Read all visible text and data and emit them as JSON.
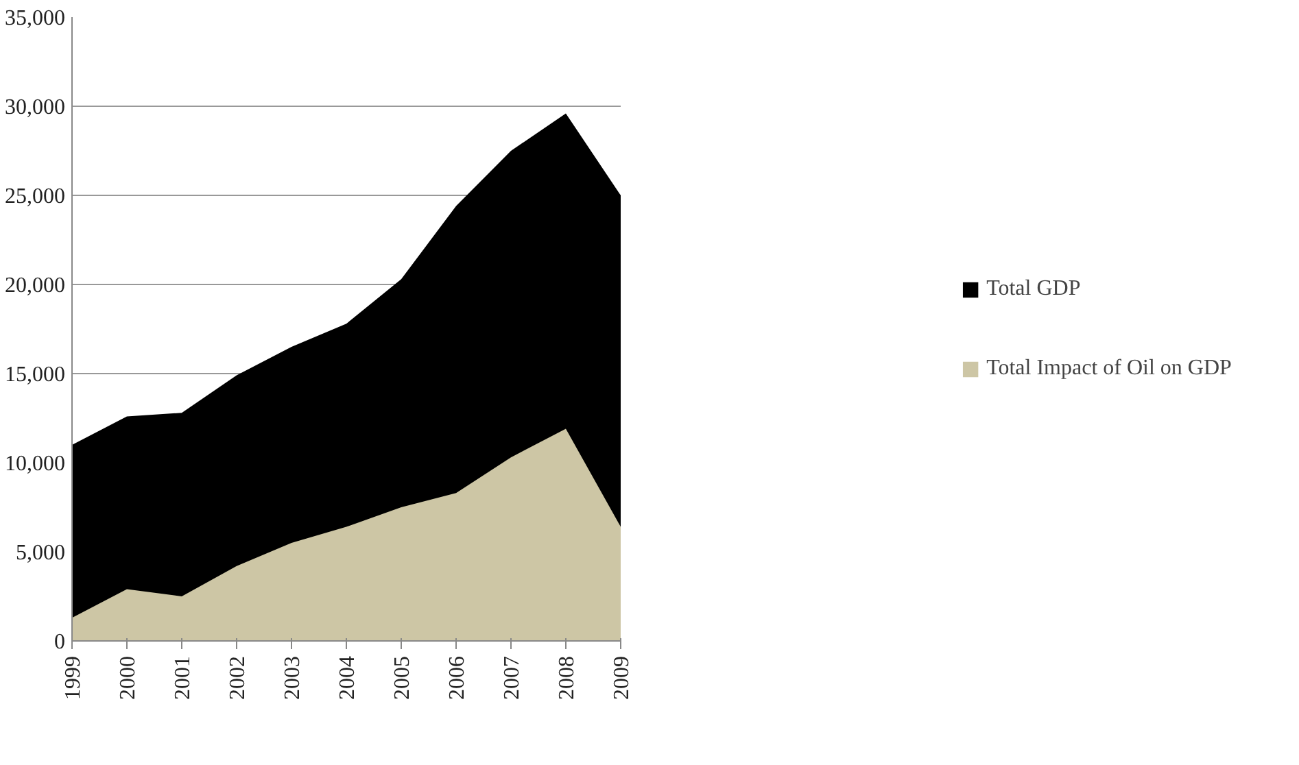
{
  "chart_data": {
    "type": "area",
    "categories": [
      "1999",
      "2000",
      "2001",
      "2002",
      "2003",
      "2004",
      "2005",
      "2006",
      "2007",
      "2008",
      "2009"
    ],
    "series": [
      {
        "name": "Total GDP",
        "color": "#000000",
        "values": [
          11000,
          12600,
          12800,
          14900,
          16500,
          17800,
          20300,
          24400,
          27500,
          29600,
          25000
        ]
      },
      {
        "name": "Total Impact of Oil on GDP",
        "color": "#cdc6a5",
        "values": [
          1300,
          2900,
          2500,
          4200,
          5500,
          6400,
          7500,
          8300,
          10300,
          11900,
          6400
        ]
      }
    ],
    "ylim": [
      0,
      35000
    ],
    "yticks": [
      0,
      {
        "value": 5000,
        "label": "5,000"
      },
      {
        "value": 10000,
        "label": "10,000"
      },
      {
        "value": 15000,
        "label": "15,000"
      },
      {
        "value": 20000,
        "label": "20,000"
      },
      {
        "value": 25000,
        "label": "25,000"
      },
      {
        "value": 30000,
        "label": "30,000"
      },
      {
        "value": 35000,
        "label": "35,000"
      }
    ],
    "grid": "y",
    "legend": "right"
  }
}
